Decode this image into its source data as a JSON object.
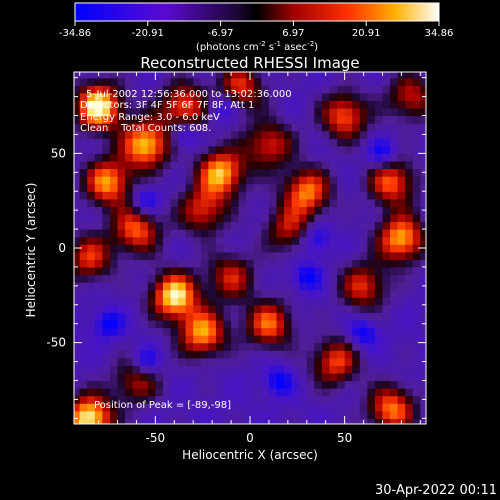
{
  "chart_data": {
    "type": "heatmap",
    "title": "Reconstructed RHESSI Image",
    "xlabel": "Heliocentric X (arcsec)",
    "ylabel": "Heliocentric Y (arcsec)",
    "xlim": [
      -93,
      93
    ],
    "ylim": [
      -93,
      93
    ],
    "x_ticks": [
      -50,
      0,
      50
    ],
    "y_ticks": [
      -50,
      0,
      50
    ],
    "colorbar": {
      "ticks": [
        "-34.86",
        "-20.91",
        "-6.97",
        "6.97",
        "20.91",
        "34.86"
      ],
      "range": [
        -34.86,
        34.86
      ],
      "unit_base": "(photons cm",
      "unit_exp1": "-2",
      "unit_mid": " s",
      "unit_exp2": "-1",
      "unit_mid2": " asec",
      "unit_exp3": "-2",
      "unit_end": ")"
    },
    "annotations": [
      "5-Jul-2002 12:56:36.000 to 13:02:36.000",
      "Detectors: 3F 4F 5F 6F 7F 8F, Att 1",
      "Energy Range: 3.0 - 6.0 keV",
      "Clean    Total Counts: 608."
    ],
    "peak_text": "Position of Peak = [-89,-98]",
    "peak": [
      -89,
      -98
    ]
  },
  "footer": {
    "date": "30-Apr-2022 00:11"
  }
}
